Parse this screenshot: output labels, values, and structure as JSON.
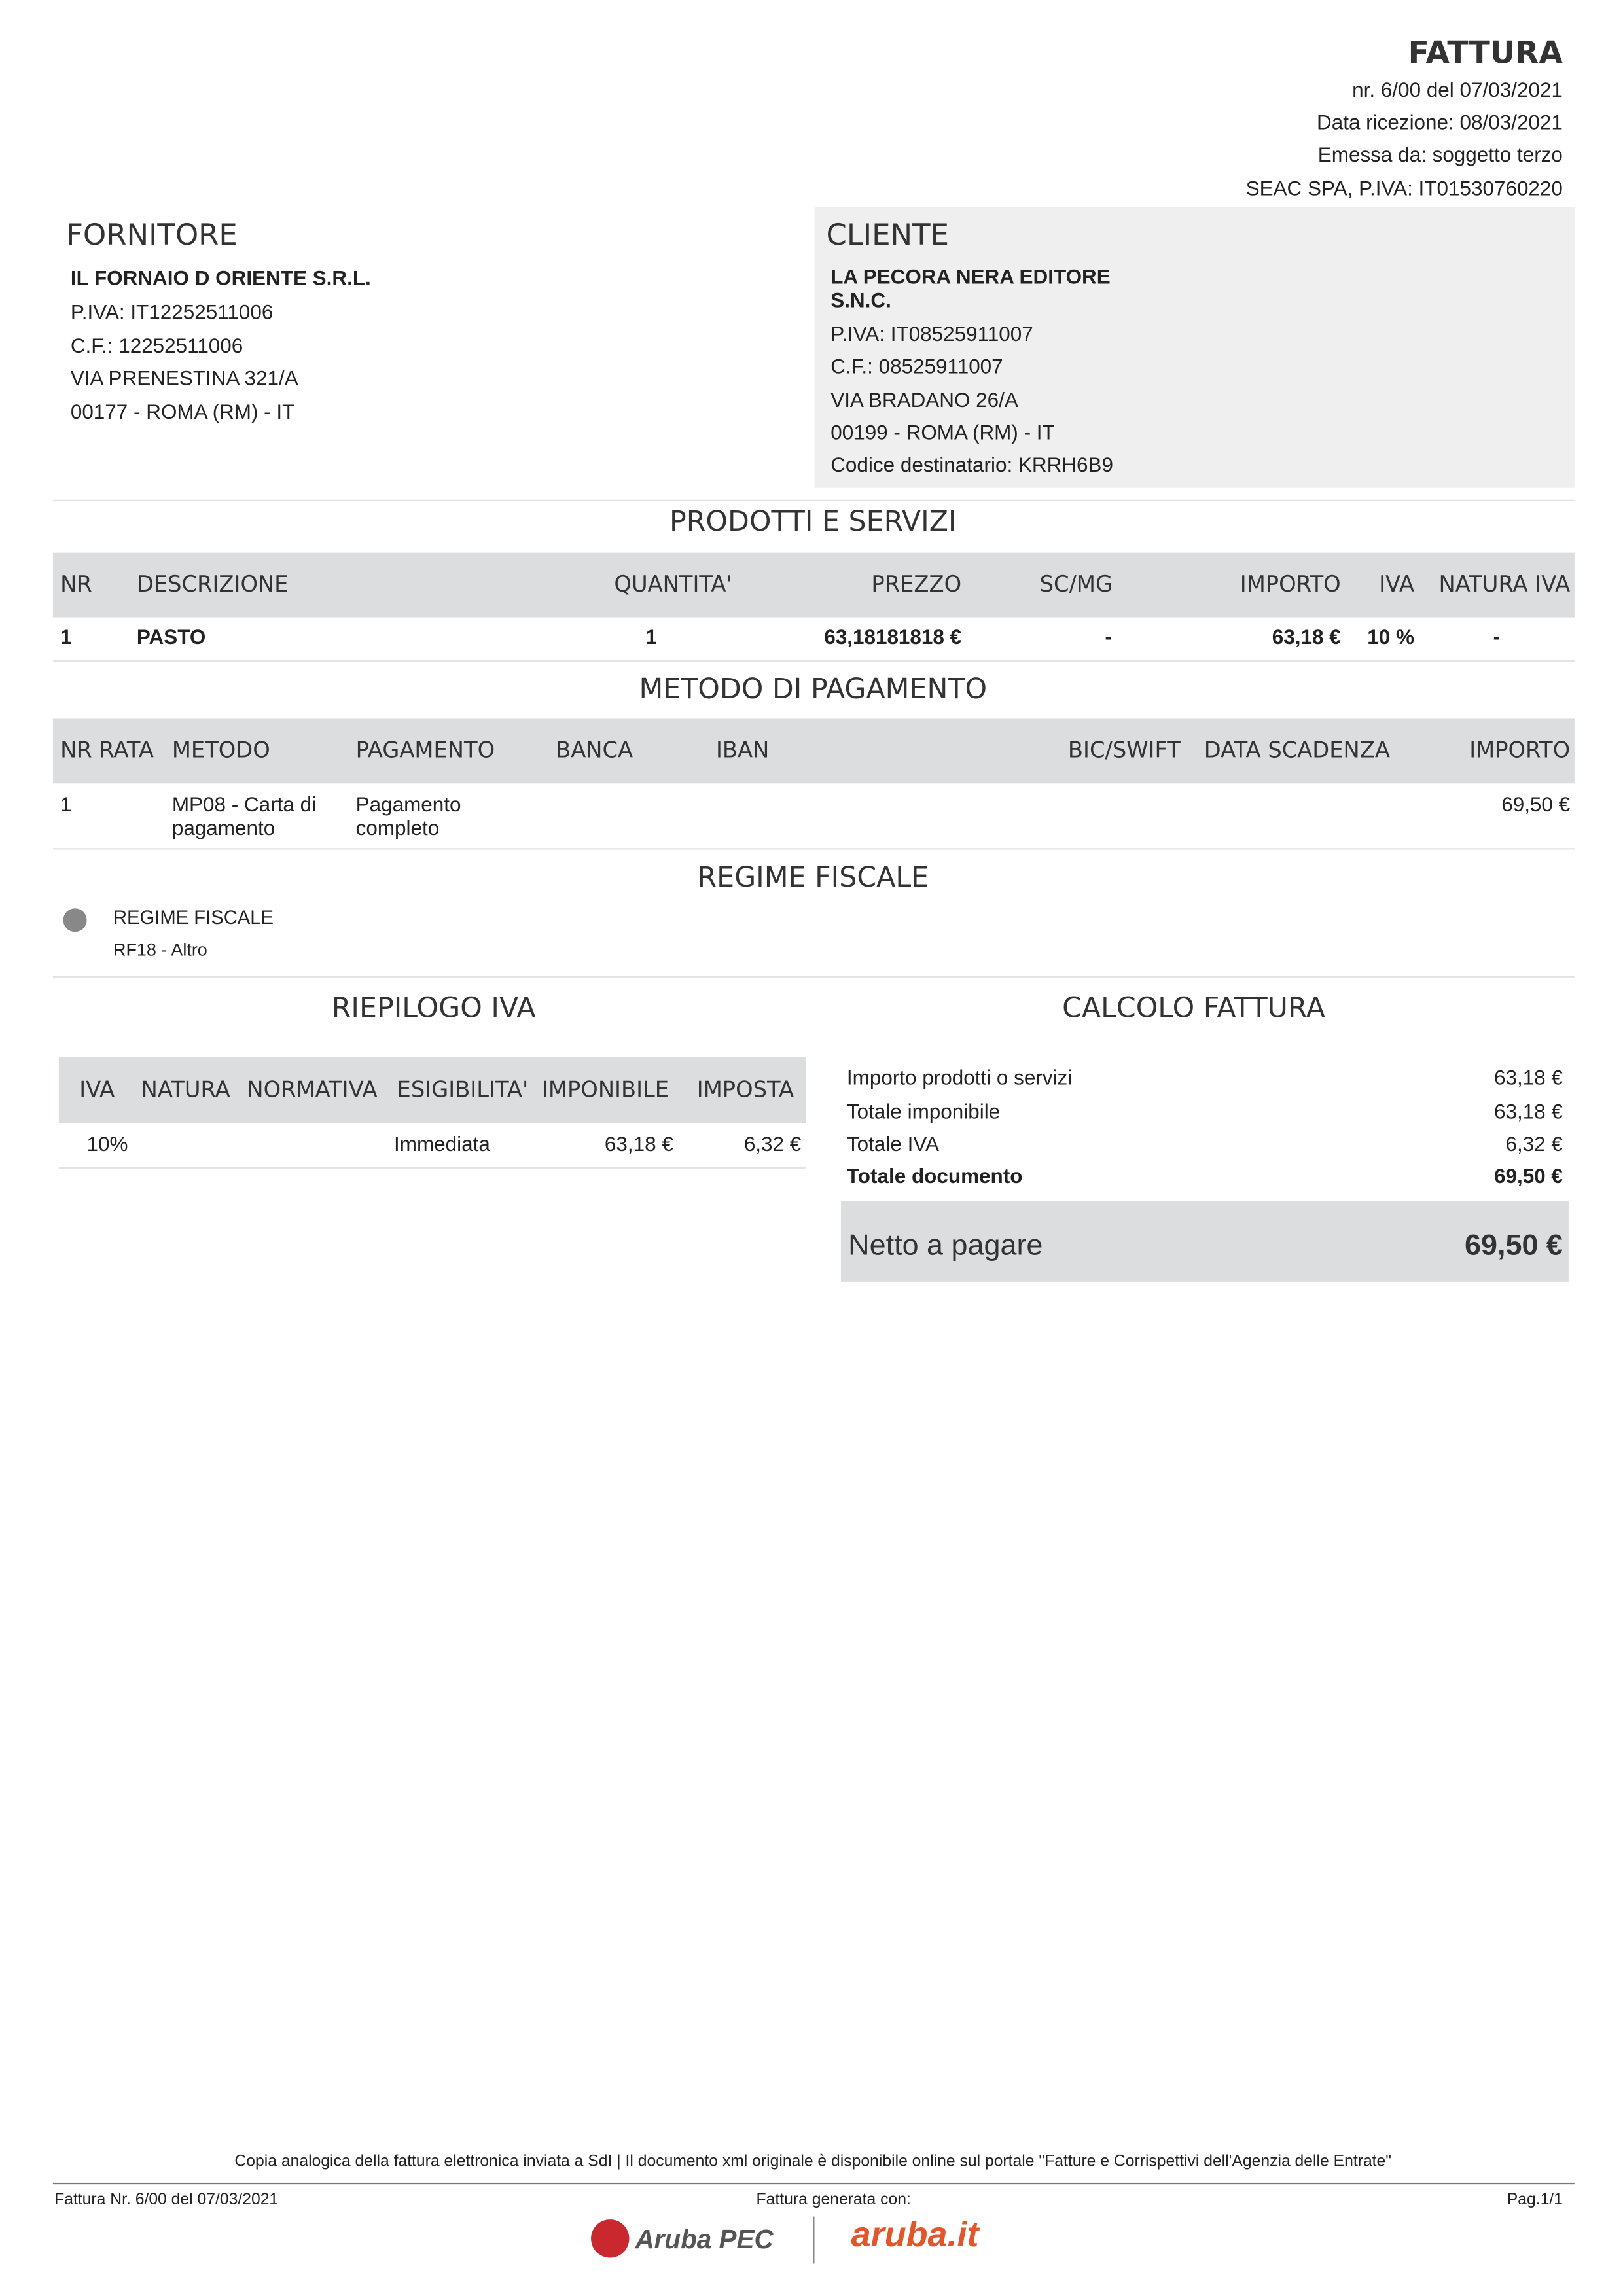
{
  "header": {
    "title": "FATTURA",
    "lines": [
      "nr. 6/00 del 07/03/2021",
      "Data ricezione: 08/03/2021",
      "Emessa da: soggetto terzo",
      "SEAC SPA, P.IVA: IT01530760220"
    ]
  },
  "supplier": {
    "title": "FORNITORE",
    "name": "IL FORNAIO D ORIENTE S.R.L.",
    "lines": [
      "P.IVA: IT12252511006",
      "C.F.: 12252511006",
      "VIA PRENESTINA 321/A",
      "00177 - ROMA (RM) - IT"
    ]
  },
  "client": {
    "title": "CLIENTE",
    "name": "LA PECORA NERA EDITORE S.N.C.",
    "lines": [
      "P.IVA: IT08525911007",
      "C.F.: 08525911007",
      "VIA BRADANO 26/A",
      "00199 - ROMA (RM) - IT",
      "Codice destinatario: KRRH6B9"
    ]
  },
  "products": {
    "title": "PRODOTTI E SERVIZI",
    "columns": [
      "NR",
      "DESCRIZIONE",
      "QUANTITA'",
      "PREZZO",
      "SC/MG",
      "IMPORTO",
      "IVA",
      "NATURA IVA"
    ],
    "rows": [
      [
        "1",
        "PASTO",
        "1",
        "63,18181818 €",
        "-",
        "63,18 €",
        "10 %",
        "-"
      ]
    ]
  },
  "payment": {
    "title": "METODO DI PAGAMENTO",
    "columns": [
      "NR RATA",
      "METODO",
      "PAGAMENTO",
      "BANCA",
      "IBAN",
      "BIC/SWIFT",
      "DATA SCADENZA",
      "IMPORTO"
    ],
    "rows": [
      [
        "1",
        "MP08 - Carta di pagamento",
        "Pagamento completo",
        null,
        null,
        null,
        null,
        "69,50 €"
      ]
    ]
  },
  "regime": {
    "title": "REGIME FISCALE",
    "label": "REGIME FISCALE",
    "value": "RF18 - Altro"
  },
  "vat_summary": {
    "title": "RIEPILOGO IVA",
    "columns": [
      "IVA",
      "NATURA",
      "NORMATIVA",
      "ESIGIBILITA'",
      "IMPONIBILE",
      "IMPOSTA"
    ],
    "rows": [
      [
        "10%",
        null,
        null,
        "Immediata",
        "63,18 €",
        "6,32 €"
      ]
    ]
  },
  "totals": {
    "title": "CALCOLO FATTURA",
    "rows": [
      [
        "Importo prodotti o servizi",
        "63,18 €"
      ],
      [
        "Totale imponibile",
        "63,18 €"
      ],
      [
        "Totale IVA",
        "6,32 €"
      ]
    ],
    "total": {
      "label": "Totale documento",
      "value": "69,50 €"
    },
    "net": {
      "label": "Netto a pagare",
      "value": "69,50 €"
    }
  },
  "footer": {
    "note": "Copia analogica della fattura elettronica inviata a SdI | Il documento xml originale è disponibile online sul portale \"Fatture e Corrispettivi dell'Agenzia delle Entrate\"",
    "left": "Fattura Nr. 6/00 del 07/03/2021",
    "center": "Fattura generata con:",
    "right": "Pag.1/1",
    "logos": [
      "Aruba PEC",
      "aruba.it"
    ]
  }
}
